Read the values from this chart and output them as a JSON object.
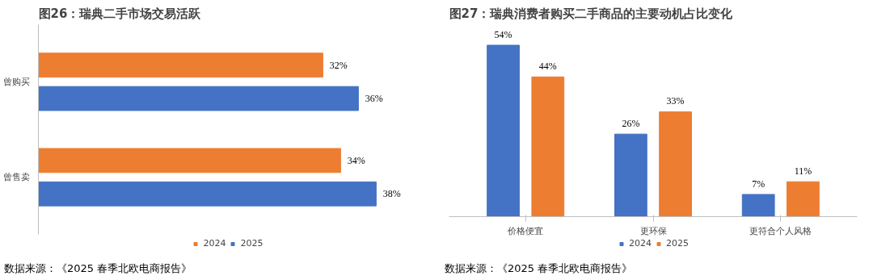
{
  "chart_data": [
    {
      "type": "bar",
      "orientation": "horizontal",
      "title": "图26：瑞典二手市场交易活跃",
      "categories": [
        "曾购买",
        "曾售卖"
      ],
      "series": [
        {
          "name": "2024",
          "color": "#ed7d31",
          "values": [
            32,
            34
          ],
          "value_labels": [
            "32%",
            "34%"
          ]
        },
        {
          "name": "2025",
          "color": "#4472c4",
          "values": [
            36,
            38
          ],
          "value_labels": [
            "36%",
            "38%"
          ]
        }
      ],
      "legend": "bottom",
      "tick_labels": "y",
      "annotations": [
        "数据来源：《2025 春季北欧电商报告》"
      ]
    },
    {
      "type": "bar",
      "title": "图27：瑞典消费者购买二手商品的主要动机占比变化",
      "categories": [
        "价格便宜",
        "更环保",
        "更符合个人风格"
      ],
      "series": [
        {
          "name": "2024",
          "color": "#4472c4",
          "values": [
            54,
            26,
            7
          ],
          "value_labels": [
            "54%",
            "26%",
            "7%"
          ]
        },
        {
          "name": "2025",
          "color": "#ed7d31",
          "values": [
            44,
            33,
            11
          ],
          "value_labels": [
            "44%",
            "33%",
            "11%"
          ]
        }
      ],
      "legend": "bottom",
      "tick_labels": "x",
      "annotations": [
        "数据来源：《2025 春季北欧电商报告》"
      ]
    }
  ]
}
